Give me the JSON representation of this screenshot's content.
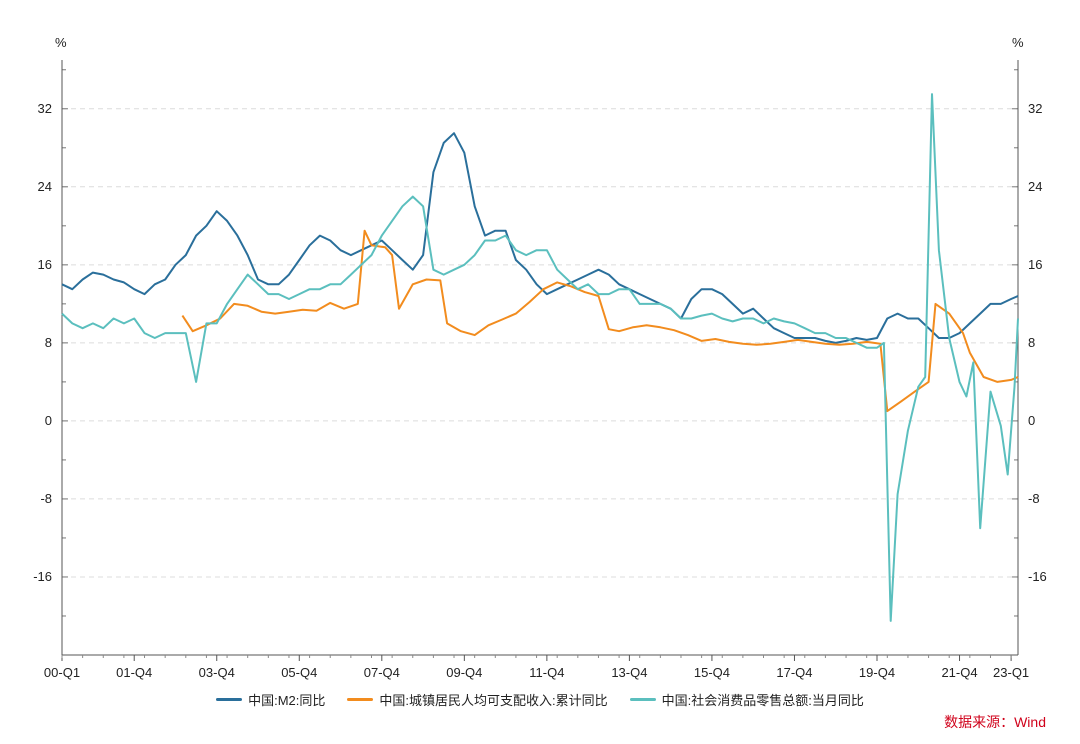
{
  "chart_data": {
    "type": "line",
    "left_unit": "%",
    "right_unit": "%",
    "y_ticks": [
      32,
      24,
      16,
      8,
      0,
      -8,
      -16
    ],
    "y_tick_labels": [
      "32",
      "24",
      "16",
      "8",
      "0",
      "-8",
      "-16"
    ],
    "ylim": [
      -24,
      37
    ],
    "x_range": [
      2000.0,
      2023.167
    ],
    "x_ticks": [
      {
        "x": 2000.0,
        "label": "00-Q1"
      },
      {
        "x": 2001.75,
        "label": "01-Q4"
      },
      {
        "x": 2003.75,
        "label": "03-Q4"
      },
      {
        "x": 2005.75,
        "label": "05-Q4"
      },
      {
        "x": 2007.75,
        "label": "07-Q4"
      },
      {
        "x": 2009.75,
        "label": "09-Q4"
      },
      {
        "x": 2011.75,
        "label": "11-Q4"
      },
      {
        "x": 2013.75,
        "label": "13-Q4"
      },
      {
        "x": 2015.75,
        "label": "15-Q4"
      },
      {
        "x": 2017.75,
        "label": "17-Q4"
      },
      {
        "x": 2019.75,
        "label": "19-Q4"
      },
      {
        "x": 2021.75,
        "label": "21-Q4"
      },
      {
        "x": 2023.0,
        "label": "23-Q1"
      }
    ],
    "grid": true,
    "legend_position": "bottom",
    "source_text": "数据来源：Wind",
    "series": [
      {
        "name": "中国:M2:同比",
        "color": "#2a6f9b",
        "points": [
          [
            2000.0,
            14.0
          ],
          [
            2000.25,
            13.5
          ],
          [
            2000.5,
            14.5
          ],
          [
            2000.75,
            15.2
          ],
          [
            2001.0,
            15.0
          ],
          [
            2001.25,
            14.5
          ],
          [
            2001.5,
            14.2
          ],
          [
            2001.75,
            13.5
          ],
          [
            2002.0,
            13.0
          ],
          [
            2002.25,
            14.0
          ],
          [
            2002.5,
            14.5
          ],
          [
            2002.75,
            16.0
          ],
          [
            2003.0,
            17.0
          ],
          [
            2003.25,
            19.0
          ],
          [
            2003.5,
            20.0
          ],
          [
            2003.75,
            21.5
          ],
          [
            2004.0,
            20.5
          ],
          [
            2004.25,
            19.0
          ],
          [
            2004.5,
            17.0
          ],
          [
            2004.75,
            14.5
          ],
          [
            2005.0,
            14.0
          ],
          [
            2005.25,
            14.0
          ],
          [
            2005.5,
            15.0
          ],
          [
            2005.75,
            16.5
          ],
          [
            2006.0,
            18.0
          ],
          [
            2006.25,
            19.0
          ],
          [
            2006.5,
            18.5
          ],
          [
            2006.75,
            17.5
          ],
          [
            2007.0,
            17.0
          ],
          [
            2007.25,
            17.5
          ],
          [
            2007.5,
            18.0
          ],
          [
            2007.75,
            18.5
          ],
          [
            2008.0,
            17.5
          ],
          [
            2008.25,
            16.5
          ],
          [
            2008.5,
            15.5
          ],
          [
            2008.75,
            17.0
          ],
          [
            2009.0,
            25.5
          ],
          [
            2009.25,
            28.5
          ],
          [
            2009.5,
            29.5
          ],
          [
            2009.75,
            27.5
          ],
          [
            2010.0,
            22.0
          ],
          [
            2010.25,
            19.0
          ],
          [
            2010.5,
            19.5
          ],
          [
            2010.75,
            19.5
          ],
          [
            2011.0,
            16.5
          ],
          [
            2011.25,
            15.5
          ],
          [
            2011.5,
            14.0
          ],
          [
            2011.75,
            13.0
          ],
          [
            2012.0,
            13.5
          ],
          [
            2012.25,
            14.0
          ],
          [
            2012.5,
            14.5
          ],
          [
            2012.75,
            15.0
          ],
          [
            2013.0,
            15.5
          ],
          [
            2013.25,
            15.0
          ],
          [
            2013.5,
            14.0
          ],
          [
            2013.75,
            13.5
          ],
          [
            2014.0,
            13.0
          ],
          [
            2014.25,
            12.5
          ],
          [
            2014.5,
            12.0
          ],
          [
            2014.75,
            11.5
          ],
          [
            2015.0,
            10.5
          ],
          [
            2015.25,
            12.5
          ],
          [
            2015.5,
            13.5
          ],
          [
            2015.75,
            13.5
          ],
          [
            2016.0,
            13.0
          ],
          [
            2016.25,
            12.0
          ],
          [
            2016.5,
            11.0
          ],
          [
            2016.75,
            11.5
          ],
          [
            2017.0,
            10.5
          ],
          [
            2017.25,
            9.5
          ],
          [
            2017.5,
            9.0
          ],
          [
            2017.75,
            8.5
          ],
          [
            2018.0,
            8.5
          ],
          [
            2018.25,
            8.5
          ],
          [
            2018.5,
            8.2
          ],
          [
            2018.75,
            8.0
          ],
          [
            2019.0,
            8.2
          ],
          [
            2019.25,
            8.5
          ],
          [
            2019.5,
            8.3
          ],
          [
            2019.75,
            8.5
          ],
          [
            2020.0,
            10.5
          ],
          [
            2020.25,
            11.0
          ],
          [
            2020.5,
            10.5
          ],
          [
            2020.75,
            10.5
          ],
          [
            2021.0,
            9.5
          ],
          [
            2021.25,
            8.5
          ],
          [
            2021.5,
            8.5
          ],
          [
            2021.75,
            9.0
          ],
          [
            2022.0,
            10.0
          ],
          [
            2022.25,
            11.0
          ],
          [
            2022.5,
            12.0
          ],
          [
            2022.75,
            12.0
          ],
          [
            2023.0,
            12.5
          ],
          [
            2023.167,
            12.8
          ]
        ]
      },
      {
        "name": "中国:城镇居民人均可支配收入:累计同比",
        "color": "#f28c1e",
        "points": [
          [
            2002.917,
            10.8
          ],
          [
            2003.167,
            9.2
          ],
          [
            2003.5,
            9.8
          ],
          [
            2003.833,
            10.5
          ],
          [
            2004.167,
            12.0
          ],
          [
            2004.5,
            11.8
          ],
          [
            2004.833,
            11.2
          ],
          [
            2005.167,
            11.0
          ],
          [
            2005.5,
            11.2
          ],
          [
            2005.833,
            11.4
          ],
          [
            2006.167,
            11.3
          ],
          [
            2006.5,
            12.1
          ],
          [
            2006.833,
            11.5
          ],
          [
            2007.167,
            12.0
          ],
          [
            2007.333,
            19.5
          ],
          [
            2007.5,
            18.0
          ],
          [
            2007.833,
            17.8
          ],
          [
            2008.0,
            17.0
          ],
          [
            2008.167,
            11.5
          ],
          [
            2008.5,
            14.0
          ],
          [
            2008.833,
            14.5
          ],
          [
            2009.167,
            14.4
          ],
          [
            2009.333,
            10.0
          ],
          [
            2009.667,
            9.2
          ],
          [
            2010.0,
            8.8
          ],
          [
            2010.333,
            9.8
          ],
          [
            2010.667,
            10.4
          ],
          [
            2011.0,
            11.0
          ],
          [
            2011.333,
            12.2
          ],
          [
            2011.667,
            13.5
          ],
          [
            2012.0,
            14.2
          ],
          [
            2012.333,
            13.8
          ],
          [
            2012.667,
            13.2
          ],
          [
            2013.0,
            12.8
          ],
          [
            2013.25,
            9.4
          ],
          [
            2013.5,
            9.2
          ],
          [
            2013.833,
            9.6
          ],
          [
            2014.167,
            9.8
          ],
          [
            2014.5,
            9.6
          ],
          [
            2014.833,
            9.3
          ],
          [
            2015.167,
            8.8
          ],
          [
            2015.5,
            8.2
          ],
          [
            2015.833,
            8.4
          ],
          [
            2016.167,
            8.1
          ],
          [
            2016.5,
            7.9
          ],
          [
            2016.833,
            7.8
          ],
          [
            2017.167,
            7.9
          ],
          [
            2017.5,
            8.1
          ],
          [
            2017.833,
            8.3
          ],
          [
            2018.167,
            8.1
          ],
          [
            2018.5,
            7.9
          ],
          [
            2018.833,
            7.8
          ],
          [
            2019.167,
            7.9
          ],
          [
            2019.5,
            8.1
          ],
          [
            2019.833,
            7.9
          ],
          [
            2020.0,
            1.0
          ],
          [
            2020.333,
            2.0
          ],
          [
            2020.667,
            3.0
          ],
          [
            2021.0,
            4.0
          ],
          [
            2021.167,
            12.0
          ],
          [
            2021.5,
            11.0
          ],
          [
            2021.833,
            9.0
          ],
          [
            2022.0,
            7.0
          ],
          [
            2022.333,
            4.5
          ],
          [
            2022.667,
            4.0
          ],
          [
            2023.0,
            4.2
          ],
          [
            2023.167,
            4.5
          ]
        ]
      },
      {
        "name": "中国:社会消费品零售总额:当月同比",
        "color": "#5bbfbe",
        "points": [
          [
            2000.0,
            11.0
          ],
          [
            2000.25,
            10.0
          ],
          [
            2000.5,
            9.5
          ],
          [
            2000.75,
            10.0
          ],
          [
            2001.0,
            9.5
          ],
          [
            2001.25,
            10.5
          ],
          [
            2001.5,
            10.0
          ],
          [
            2001.75,
            10.5
          ],
          [
            2002.0,
            9.0
          ],
          [
            2002.25,
            8.5
          ],
          [
            2002.5,
            9.0
          ],
          [
            2002.75,
            9.0
          ],
          [
            2003.0,
            9.0
          ],
          [
            2003.25,
            4.0
          ],
          [
            2003.5,
            10.0
          ],
          [
            2003.75,
            10.0
          ],
          [
            2004.0,
            12.0
          ],
          [
            2004.25,
            13.5
          ],
          [
            2004.5,
            15.0
          ],
          [
            2004.75,
            14.0
          ],
          [
            2005.0,
            13.0
          ],
          [
            2005.25,
            13.0
          ],
          [
            2005.5,
            12.5
          ],
          [
            2005.75,
            13.0
          ],
          [
            2006.0,
            13.5
          ],
          [
            2006.25,
            13.5
          ],
          [
            2006.5,
            14.0
          ],
          [
            2006.75,
            14.0
          ],
          [
            2007.0,
            15.0
          ],
          [
            2007.25,
            16.0
          ],
          [
            2007.5,
            17.0
          ],
          [
            2007.75,
            19.0
          ],
          [
            2008.0,
            20.5
          ],
          [
            2008.25,
            22.0
          ],
          [
            2008.5,
            23.0
          ],
          [
            2008.75,
            22.0
          ],
          [
            2009.0,
            15.5
          ],
          [
            2009.25,
            15.0
          ],
          [
            2009.5,
            15.5
          ],
          [
            2009.75,
            16.0
          ],
          [
            2010.0,
            17.0
          ],
          [
            2010.25,
            18.5
          ],
          [
            2010.5,
            18.5
          ],
          [
            2010.75,
            19.0
          ],
          [
            2011.0,
            17.5
          ],
          [
            2011.25,
            17.0
          ],
          [
            2011.5,
            17.5
          ],
          [
            2011.75,
            17.5
          ],
          [
            2012.0,
            15.5
          ],
          [
            2012.25,
            14.5
          ],
          [
            2012.5,
            13.5
          ],
          [
            2012.75,
            14.0
          ],
          [
            2013.0,
            13.0
          ],
          [
            2013.25,
            13.0
          ],
          [
            2013.5,
            13.5
          ],
          [
            2013.75,
            13.5
          ],
          [
            2014.0,
            12.0
          ],
          [
            2014.25,
            12.0
          ],
          [
            2014.5,
            12.0
          ],
          [
            2014.75,
            11.5
          ],
          [
            2015.0,
            10.5
          ],
          [
            2015.25,
            10.5
          ],
          [
            2015.5,
            10.8
          ],
          [
            2015.75,
            11.0
          ],
          [
            2016.0,
            10.5
          ],
          [
            2016.25,
            10.2
          ],
          [
            2016.5,
            10.5
          ],
          [
            2016.75,
            10.5
          ],
          [
            2017.0,
            10.0
          ],
          [
            2017.25,
            10.5
          ],
          [
            2017.5,
            10.2
          ],
          [
            2017.75,
            10.0
          ],
          [
            2018.0,
            9.5
          ],
          [
            2018.25,
            9.0
          ],
          [
            2018.5,
            9.0
          ],
          [
            2018.75,
            8.5
          ],
          [
            2019.0,
            8.5
          ],
          [
            2019.25,
            8.0
          ],
          [
            2019.5,
            7.5
          ],
          [
            2019.75,
            7.5
          ],
          [
            2019.917,
            8.0
          ],
          [
            2020.083,
            -20.5
          ],
          [
            2020.25,
            -7.5
          ],
          [
            2020.5,
            -1.0
          ],
          [
            2020.75,
            3.5
          ],
          [
            2020.917,
            4.5
          ],
          [
            2021.083,
            33.5
          ],
          [
            2021.25,
            17.5
          ],
          [
            2021.5,
            8.5
          ],
          [
            2021.75,
            4.0
          ],
          [
            2021.917,
            2.5
          ],
          [
            2022.083,
            6.0
          ],
          [
            2022.25,
            -11.0
          ],
          [
            2022.5,
            3.0
          ],
          [
            2022.75,
            -0.5
          ],
          [
            2022.917,
            -5.5
          ],
          [
            2023.083,
            3.5
          ],
          [
            2023.167,
            10.5
          ]
        ]
      }
    ]
  }
}
